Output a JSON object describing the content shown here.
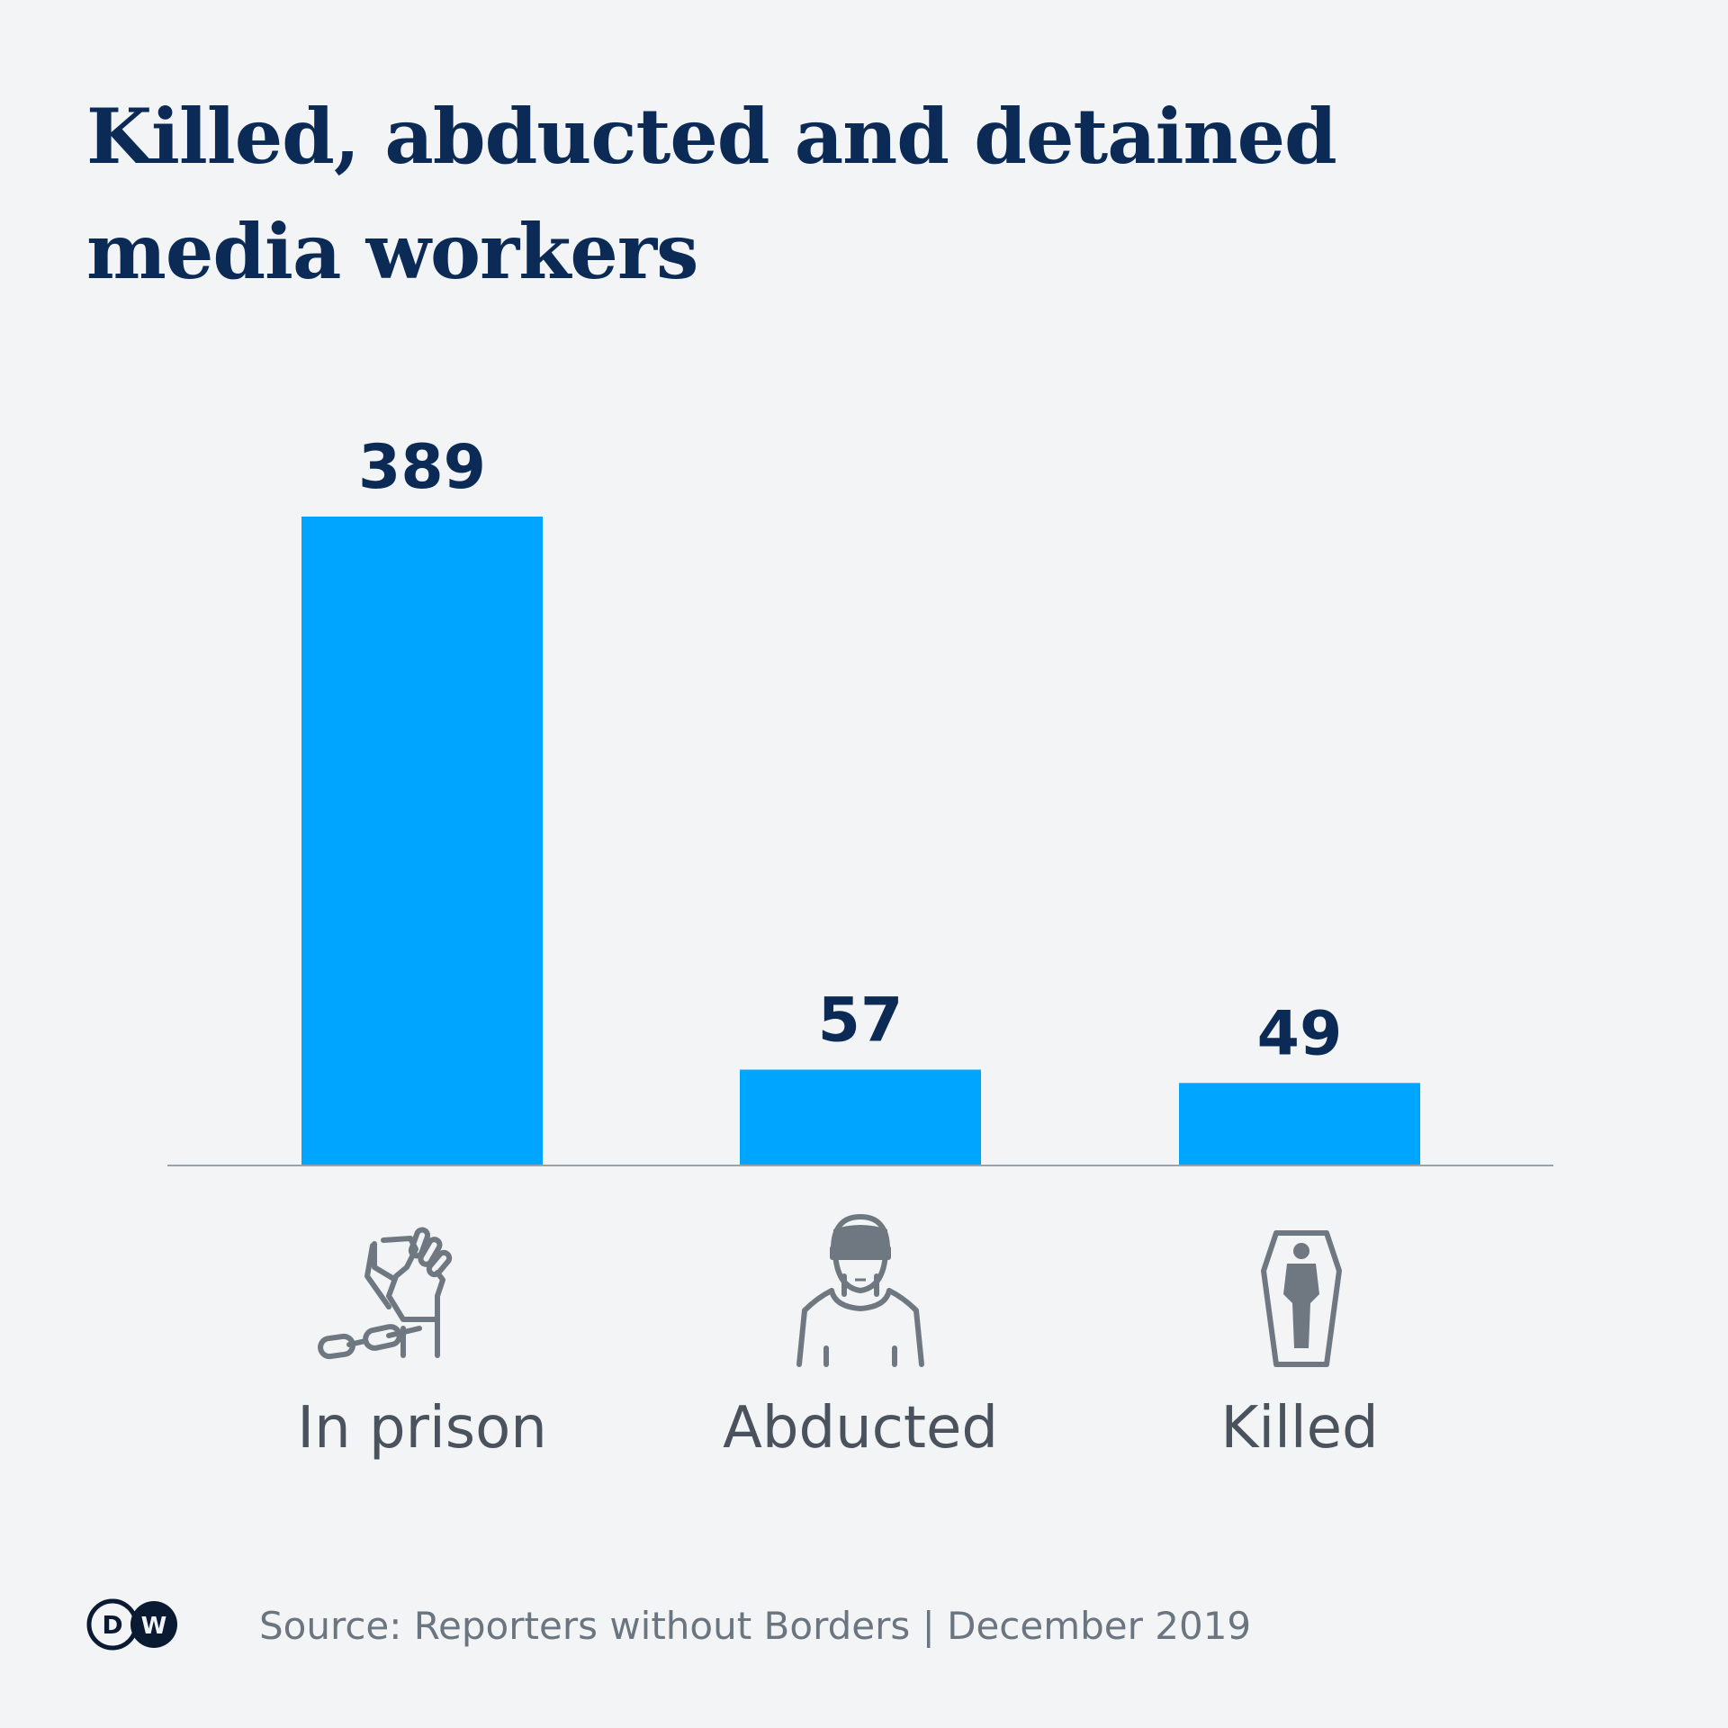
{
  "title_lines": [
    "Killed, abducted and detained",
    "media workers"
  ],
  "source": "Source: Reporters without Borders | December 2019",
  "logo_text": "DW",
  "colors": {
    "bar": "#00a5ff",
    "title": "#0b2a55",
    "value_label": "#0b2a55",
    "category_label": "#4a535d",
    "icon": "#6f7881",
    "axis": "#9aa3ab",
    "background": "#f2f4f6"
  },
  "icons": [
    "fist-chain-icon",
    "blindfolded-person-icon",
    "coffin-icon"
  ],
  "chart_data": {
    "type": "bar",
    "categories": [
      "In prison",
      "Abducted",
      "Killed"
    ],
    "values": [
      389,
      57,
      49
    ],
    "title": "Killed, abducted and detained media workers",
    "xlabel": "",
    "ylabel": "",
    "ylim": [
      0,
      389
    ],
    "grid": false,
    "data_labels": [
      "389",
      "57",
      "49"
    ]
  }
}
